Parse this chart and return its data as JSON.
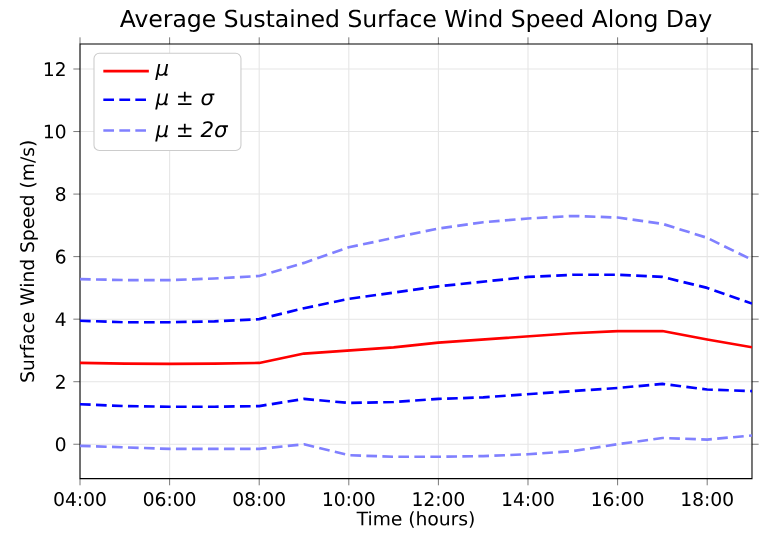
{
  "chart_data": {
    "type": "line",
    "title": "Average Sustained Surface Wind Speed Along Day",
    "xlabel": "Time (hours)",
    "ylabel": "Surface Wind Speed (m/s)",
    "x": [
      4,
      5,
      6,
      7,
      8,
      9,
      10,
      11,
      12,
      13,
      14,
      15,
      16,
      17,
      18,
      19
    ],
    "series": [
      {
        "name": "μ",
        "color": "#ff0000",
        "line_style": "solid",
        "values": [
          2.6,
          2.58,
          2.57,
          2.58,
          2.6,
          2.9,
          3.0,
          3.1,
          3.25,
          3.35,
          3.45,
          3.55,
          3.62,
          3.62,
          3.35,
          3.1
        ]
      },
      {
        "name": "μ ± σ",
        "color": "#0000ff",
        "line_style": "dashed",
        "values": [
          3.95,
          3.9,
          3.9,
          3.93,
          4.0,
          4.35,
          4.65,
          4.85,
          5.05,
          5.2,
          5.35,
          5.42,
          5.42,
          5.35,
          5.0,
          4.5
        ]
      },
      {
        "color": "#0000ff",
        "line_style": "dashed",
        "values": [
          1.28,
          1.22,
          1.2,
          1.2,
          1.22,
          1.45,
          1.32,
          1.35,
          1.45,
          1.5,
          1.6,
          1.7,
          1.8,
          1.93,
          1.75,
          1.7
        ]
      },
      {
        "name": "μ ± 2σ",
        "color": "#8080ff",
        "line_style": "dashed",
        "values": [
          5.28,
          5.25,
          5.25,
          5.3,
          5.38,
          5.8,
          6.3,
          6.6,
          6.9,
          7.1,
          7.22,
          7.3,
          7.25,
          7.05,
          6.6,
          5.9
        ]
      },
      {
        "color": "#8080ff",
        "line_style": "dashed",
        "values": [
          -0.05,
          -0.1,
          -0.15,
          -0.15,
          -0.15,
          0.0,
          -0.35,
          -0.4,
          -0.4,
          -0.38,
          -0.32,
          -0.22,
          0.0,
          0.2,
          0.15,
          0.28
        ]
      }
    ],
    "xlim": [
      4,
      19
    ],
    "ylim": [
      -1.1,
      12.8
    ],
    "xticks": [
      {
        "value": 4,
        "label": "04:00"
      },
      {
        "value": 6,
        "label": "06:00"
      },
      {
        "value": 8,
        "label": "08:00"
      },
      {
        "value": 10,
        "label": "10:00"
      },
      {
        "value": 12,
        "label": "12:00"
      },
      {
        "value": 14,
        "label": "14:00"
      },
      {
        "value": 16,
        "label": "16:00"
      },
      {
        "value": 18,
        "label": "18:00"
      }
    ],
    "yticks": [
      0,
      2,
      4,
      6,
      8,
      10,
      12
    ],
    "grid": true,
    "legend": "top left",
    "marker": "none"
  }
}
